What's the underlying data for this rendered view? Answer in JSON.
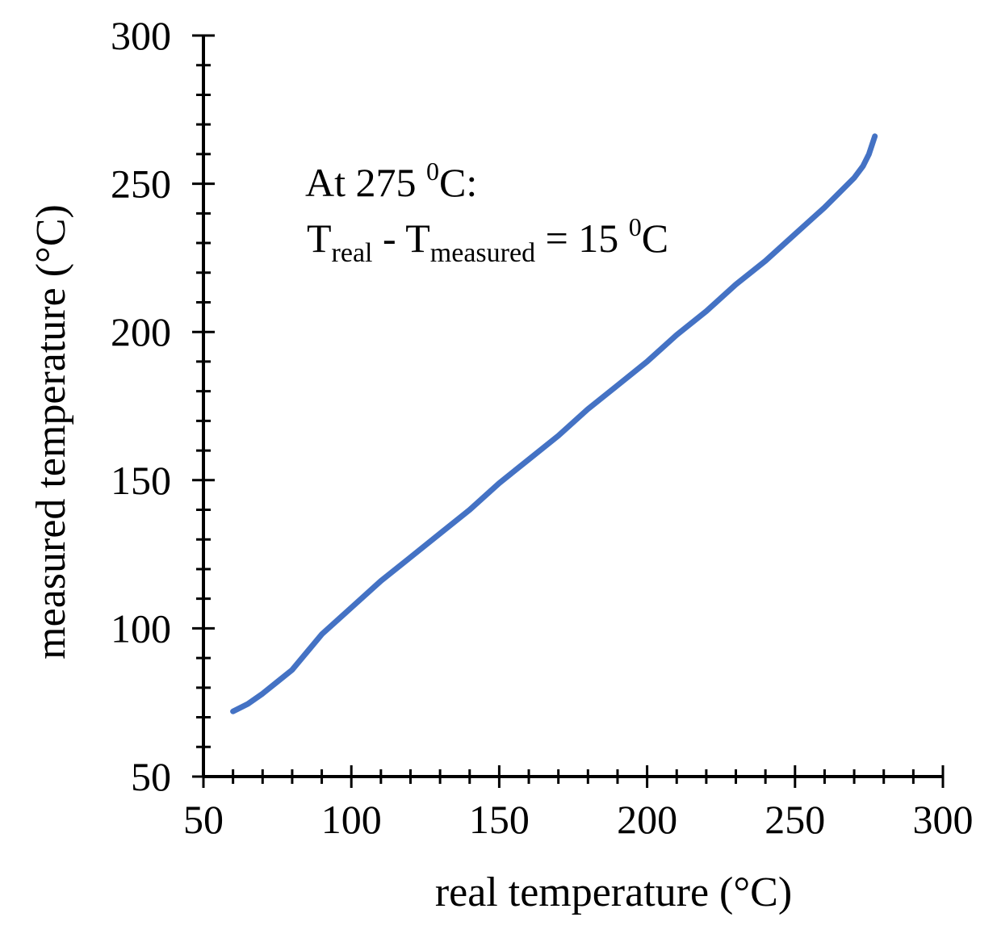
{
  "chart_data": {
    "type": "line",
    "title": "",
    "xlabel": "real temperature (°C)",
    "ylabel": "measured temperature (°C)",
    "xlim": [
      50,
      300
    ],
    "ylim": [
      50,
      300
    ],
    "x_ticks": [
      "50",
      "100",
      "150",
      "200",
      "250",
      "300"
    ],
    "y_ticks": [
      "50",
      "100",
      "150",
      "200",
      "250",
      "300"
    ],
    "x_tick_values": [
      50,
      100,
      150,
      200,
      250,
      300
    ],
    "y_tick_values": [
      50,
      100,
      150,
      200,
      250,
      300
    ],
    "minor_tick_step": 10,
    "grid": false,
    "legend": "none",
    "series": [
      {
        "color": "#4472C4",
        "x": [
          60,
          65,
          70,
          75,
          80,
          90,
          100,
          110,
          120,
          130,
          140,
          150,
          160,
          170,
          180,
          190,
          200,
          210,
          220,
          230,
          240,
          250,
          260,
          265,
          270,
          273,
          275,
          277
        ],
        "y": [
          72,
          74.5,
          78,
          82,
          86,
          98,
          107,
          116,
          124,
          132,
          140,
          149,
          157,
          165,
          174,
          182,
          190,
          199,
          207,
          216,
          224,
          233,
          242,
          247,
          252,
          256,
          260,
          266
        ]
      }
    ],
    "annotation": {
      "line1_main": "At 275 ",
      "line1_sup": "0",
      "line1_end": "C:",
      "line2_t1": "T",
      "line2_sub1": "real",
      "line2_mid": " - T",
      "line2_sub2": "measured",
      "line2_eq": " = 15 ",
      "line2_sup": "0",
      "line2_end": "C"
    }
  }
}
